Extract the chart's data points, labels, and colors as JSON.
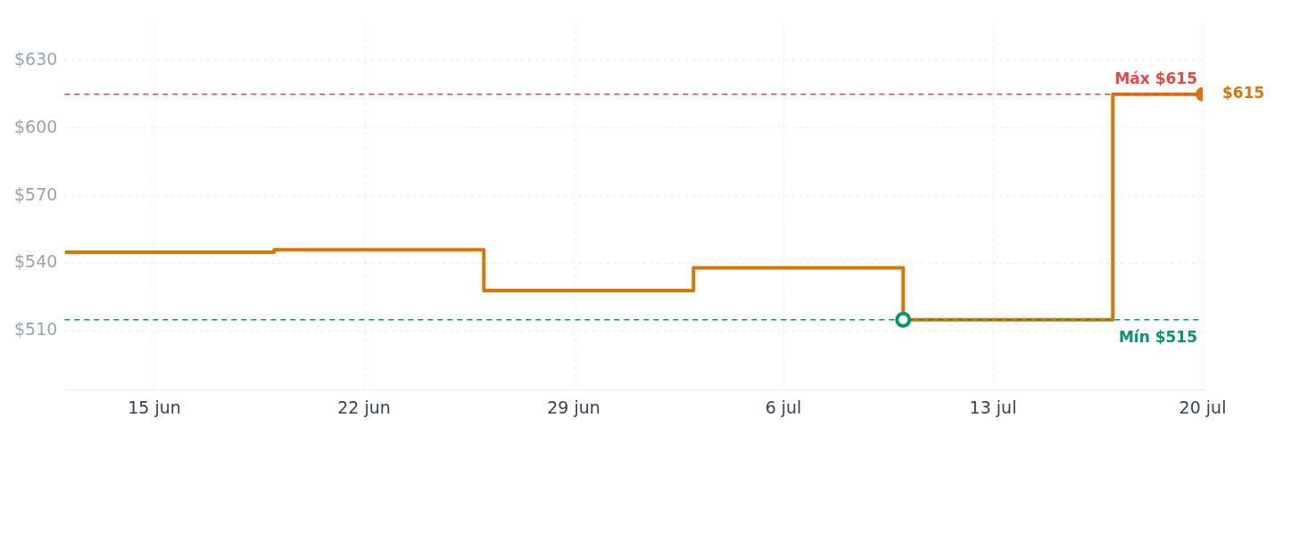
{
  "chart_data": {
    "type": "step",
    "x": [
      "--06-12",
      "--06-19",
      "--06-26",
      "--07-03",
      "--07-10",
      "--07-17",
      "--07-20"
    ],
    "series": [
      {
        "color": "#d97706",
        "values": [
          545,
          546,
          528,
          538,
          515,
          615,
          615
        ],
        "value_labels": [
          null,
          null,
          null,
          null,
          null,
          null,
          "$615"
        ]
      }
    ],
    "xlim": [
      "--06-12",
      "--07-20"
    ],
    "ylim": [
      484,
      646
    ],
    "xticks": [
      {
        "value": "--06-15",
        "label": "15 jun"
      },
      {
        "value": "--06-22",
        "label": "22 jun"
      },
      {
        "value": "--06-29",
        "label": "29 jun"
      },
      {
        "value": "--07-06",
        "label": "6 jul"
      },
      {
        "value": "--07-13",
        "label": "13 jul"
      },
      {
        "value": "--07-20",
        "label": "20 jul"
      }
    ],
    "yticks": [
      {
        "value": 510,
        "label": "$510"
      },
      {
        "value": 540,
        "label": "$540"
      },
      {
        "value": 570,
        "label": "$570"
      },
      {
        "value": 600,
        "label": "$600"
      },
      {
        "value": 630,
        "label": "$630"
      }
    ],
    "ref_lines": [
      {
        "axis": "y",
        "value": 615,
        "label": "Máx $615",
        "color": "#ef4444",
        "line_style": "dashed"
      },
      {
        "axis": "y",
        "value": 515,
        "label": "Mín $515",
        "color": "#059669",
        "line_style": "dashed"
      }
    ],
    "grid": true,
    "line_style": "solid"
  }
}
